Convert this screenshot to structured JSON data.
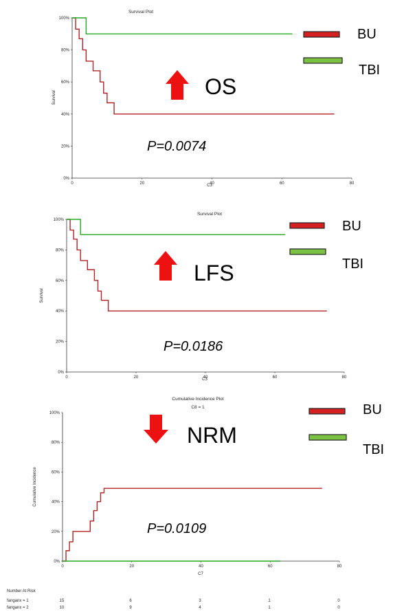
{
  "colors": {
    "bu": "#b22222",
    "tbi": "#22aa22",
    "bu_legend": "#d42020",
    "tbi_legend": "#7cc242",
    "arrow": "#ee1111"
  },
  "chart_data": [
    {
      "type": "line",
      "title": "Survival Plot",
      "subtitle": "",
      "xlabel": "C3",
      "ylabel": "Survival",
      "xlim": [
        0,
        80
      ],
      "ylim": [
        0,
        100
      ],
      "xticks": [
        "0",
        "20",
        "40",
        "60",
        "80"
      ],
      "yticks": [
        "0%",
        "20%",
        "40%",
        "60%",
        "80%",
        "100%"
      ],
      "legend": [
        "BU",
        "TBI"
      ],
      "big_label": "OS",
      "arrow": "up",
      "p_value": "P=0.0074",
      "series": [
        {
          "name": "BU",
          "x": [
            0,
            1,
            2,
            3,
            4,
            6,
            8,
            9,
            10,
            11,
            12,
            75
          ],
          "y": [
            100,
            93,
            87,
            80,
            73,
            67,
            60,
            53,
            47,
            47,
            40,
            40
          ]
        },
        {
          "name": "TBI",
          "x": [
            0,
            4,
            63
          ],
          "y": [
            100,
            90,
            90
          ]
        }
      ]
    },
    {
      "type": "line",
      "title": "Survival Plot",
      "subtitle": "",
      "xlabel": "C3",
      "ylabel": "Survival",
      "xlim": [
        0,
        80
      ],
      "ylim": [
        0,
        100
      ],
      "xticks": [
        "0",
        "20",
        "40",
        "60",
        "80"
      ],
      "yticks": [
        "0%",
        "20%",
        "40%",
        "60%",
        "80%",
        "100%"
      ],
      "legend": [
        "BU",
        "TBI"
      ],
      "big_label": "LFS",
      "arrow": "up",
      "p_value": "P=0.0186",
      "series": [
        {
          "name": "BU",
          "x": [
            0,
            1,
            2,
            3,
            4,
            6,
            8,
            9,
            10,
            11,
            12,
            75
          ],
          "y": [
            100,
            93,
            87,
            80,
            73,
            67,
            60,
            53,
            47,
            47,
            40,
            40
          ]
        },
        {
          "name": "TBI",
          "x": [
            0,
            4,
            63
          ],
          "y": [
            100,
            90,
            90
          ]
        }
      ]
    },
    {
      "type": "line",
      "title": "Cumulative Incidence Plot",
      "subtitle": "C8 = 1",
      "xlabel": "C7",
      "ylabel": "Cumulative Incidence",
      "xlim": [
        0,
        80
      ],
      "ylim": [
        0,
        100
      ],
      "xticks": [
        "0",
        "20",
        "40",
        "60",
        "80"
      ],
      "yticks": [
        "0%",
        "20%",
        "40%",
        "60%",
        "80%",
        "100%"
      ],
      "legend": [
        "BU",
        "TBI"
      ],
      "big_label": "NRM",
      "arrow": "down",
      "p_value": "P=0.0109",
      "series": [
        {
          "name": "BU",
          "x": [
            0,
            1,
            2,
            3,
            4,
            6,
            8,
            9,
            10,
            11,
            12,
            75
          ],
          "y": [
            0,
            7,
            13,
            20,
            20,
            20,
            27,
            34,
            40,
            46,
            49,
            49
          ]
        },
        {
          "name": "TBI",
          "x": [
            0,
            63
          ],
          "y": [
            0,
            0
          ]
        }
      ]
    }
  ],
  "risk_table": {
    "title": "Number At Risk",
    "rows": [
      {
        "label": "fanganx = 1",
        "values": [
          "15",
          "6",
          "3",
          "1",
          "0"
        ]
      },
      {
        "label": "fanganx = 2",
        "values": [
          "10",
          "9",
          "4",
          "1",
          "0"
        ]
      }
    ]
  }
}
